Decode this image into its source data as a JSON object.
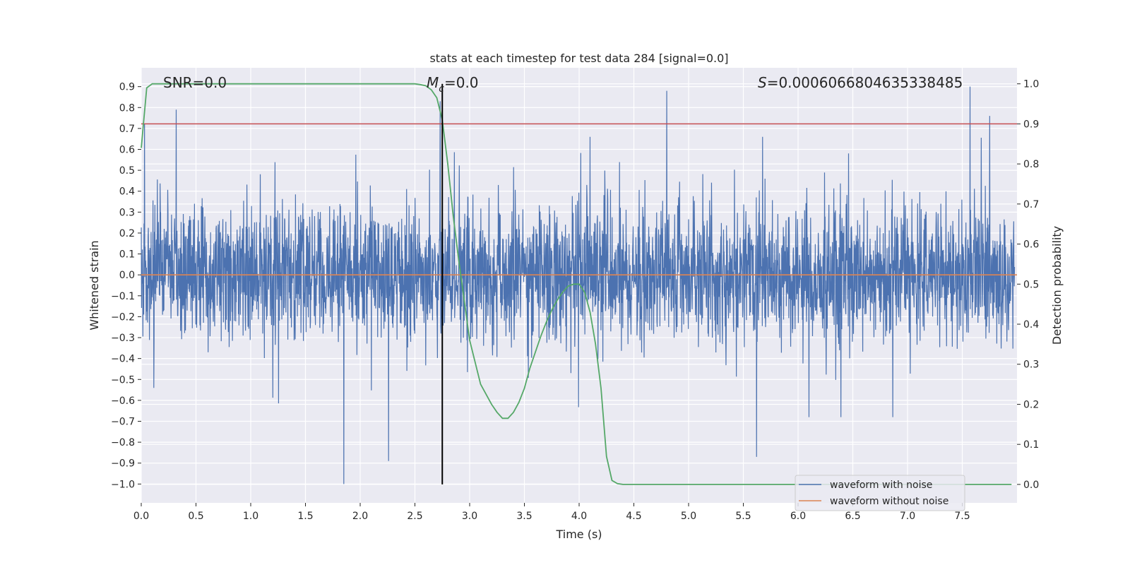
{
  "chart_data": {
    "type": "line",
    "title": "stats at each timestep for test data 284 [signal=0.0]",
    "xlabel": "Time (s)",
    "ylabel_left": "Whitened strain",
    "ylabel_right": "Detection probability",
    "xlim": [
      0.0,
      8.0
    ],
    "ylim_left": [
      -1.09,
      0.99
    ],
    "ylim_right": [
      -0.046,
      1.04
    ],
    "x_ticks": [
      "0.0",
      "0.5",
      "1.0",
      "1.5",
      "2.0",
      "2.5",
      "3.0",
      "3.5",
      "4.0",
      "4.5",
      "5.0",
      "5.5",
      "6.0",
      "6.5",
      "7.0",
      "7.5"
    ],
    "y_ticks_left": [
      "0.9",
      "0.8",
      "0.7",
      "0.6",
      "0.5",
      "0.4",
      "0.3",
      "0.2",
      "0.1",
      "0.0",
      "−0.1",
      "−0.2",
      "−0.3",
      "−0.4",
      "−0.5",
      "−0.6",
      "−0.7",
      "−0.8",
      "−0.9",
      "−1.0"
    ],
    "y_ticks_right": [
      "1.0",
      "0.9",
      "0.8",
      "0.7",
      "0.6",
      "0.5",
      "0.4",
      "0.3",
      "0.2",
      "0.1",
      "0.0"
    ],
    "grid": true,
    "legend_position": "bottom-right",
    "annotations": {
      "snr": "SNR=0.0",
      "mc_symbol": "M",
      "mc_sub": "c",
      "mc_value": "=0.0",
      "s_symbol": "S",
      "s_value": "=0.0006066804635338485"
    },
    "colors": {
      "noise": "#4c72b0",
      "clean": "#dd8452",
      "probability": "#55a868",
      "threshold": "#c44e52",
      "marker": "#000000",
      "background": "#eaeaf2"
    },
    "series": [
      {
        "name": "waveform with noise",
        "description": "dense whitened-strain noise, envelope between about -1.0 and 0.9",
        "peaks": [
          [
            0.03,
            0.72
          ],
          [
            0.32,
            0.79
          ],
          [
            1.85,
            -1.0
          ],
          [
            2.26,
            -0.89
          ],
          [
            2.73,
            0.83
          ],
          [
            4.8,
            0.88
          ],
          [
            5.62,
            -0.87
          ],
          [
            7.57,
            0.9
          ],
          [
            7.75,
            0.76
          ]
        ]
      },
      {
        "name": "waveform without noise",
        "x": [
          0.0,
          8.0
        ],
        "y": [
          0.0,
          0.0
        ]
      },
      {
        "axis": "right",
        "x": [
          0.0,
          0.05,
          0.1,
          0.2,
          0.5,
          1.0,
          1.5,
          2.0,
          2.4,
          2.5,
          2.55,
          2.6,
          2.65,
          2.7,
          2.75,
          2.8,
          2.85,
          2.9,
          2.95,
          3.0,
          3.1,
          3.2,
          3.25,
          3.3,
          3.35,
          3.4,
          3.45,
          3.5,
          3.55,
          3.6,
          3.65,
          3.7,
          3.75,
          3.8,
          3.85,
          3.9,
          3.95,
          4.0,
          4.05,
          4.1,
          4.15,
          4.2,
          4.25,
          4.3,
          4.35,
          4.4,
          4.5,
          5.0,
          6.0,
          7.0,
          7.95
        ],
        "y": [
          0.84,
          0.99,
          1.0,
          1.0,
          1.0,
          1.0,
          1.0,
          1.0,
          1.0,
          1.0,
          0.998,
          0.995,
          0.985,
          0.965,
          0.91,
          0.8,
          0.67,
          0.56,
          0.46,
          0.36,
          0.25,
          0.2,
          0.18,
          0.165,
          0.165,
          0.18,
          0.205,
          0.24,
          0.29,
          0.33,
          0.37,
          0.405,
          0.435,
          0.46,
          0.48,
          0.495,
          0.5,
          0.5,
          0.48,
          0.43,
          0.35,
          0.24,
          0.07,
          0.01,
          0.002,
          0.0,
          0.0,
          0.0,
          0.0,
          0.0,
          0.0
        ]
      }
    ],
    "threshold_right": 0.9,
    "marker_x": 2.75,
    "marker_y_range": [
      0.0,
      1.0
    ]
  }
}
